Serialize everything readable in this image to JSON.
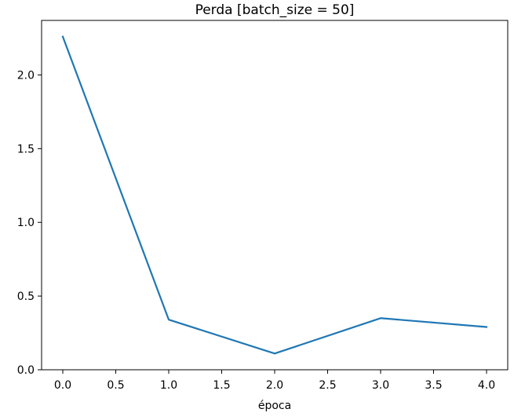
{
  "chart_data": {
    "type": "line",
    "title": "Perda [batch_size = 50]",
    "xlabel": "época",
    "ylabel": "",
    "xlim": [
      -0.2,
      4.2
    ],
    "ylim": [
      0.0,
      2.37
    ],
    "grid": false,
    "x_ticks": [
      0.0,
      0.5,
      1.0,
      1.5,
      2.0,
      2.5,
      3.0,
      3.5,
      4.0
    ],
    "x_tick_labels": [
      "0.0",
      "0.5",
      "1.0",
      "1.5",
      "2.0",
      "2.5",
      "3.0",
      "3.5",
      "4.0"
    ],
    "y_ticks": [
      0.0,
      0.5,
      1.0,
      1.5,
      2.0
    ],
    "y_tick_labels": [
      "0.0",
      "0.5",
      "1.0",
      "1.5",
      "2.0"
    ],
    "series": [
      {
        "color": "#1f77b4",
        "x": [
          0,
          1,
          2,
          3,
          4
        ],
        "y": [
          2.26,
          0.34,
          0.11,
          0.35,
          0.29
        ]
      }
    ]
  }
}
